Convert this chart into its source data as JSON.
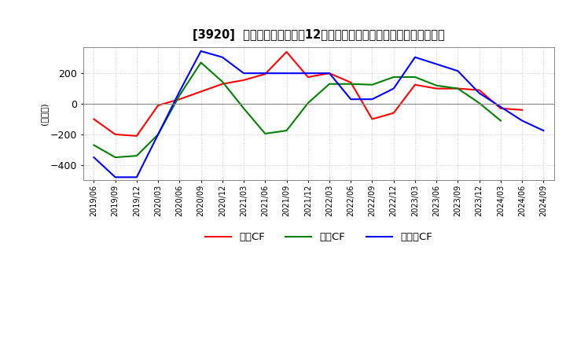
{
  "title": "[3920]  キャッシュフローの12か月移動合計の対前年同期増減額の推移",
  "ylabel": "(百万円)",
  "ylim": [
    -500,
    370
  ],
  "yticks": [
    200,
    0,
    -200,
    -400
  ],
  "x_labels": [
    "2019/06",
    "2019/09",
    "2019/12",
    "2020/03",
    "2020/06",
    "2020/09",
    "2020/12",
    "2021/03",
    "2021/06",
    "2021/09",
    "2021/12",
    "2022/03",
    "2022/06",
    "2022/09",
    "2022/12",
    "2023/03",
    "2023/06",
    "2023/09",
    "2023/12",
    "2024/03",
    "2024/06",
    "2024/09"
  ],
  "series": {
    "営業CF": {
      "color": "#ff0000",
      "values": [
        -100,
        -200,
        -210,
        -10,
        30,
        80,
        130,
        155,
        195,
        340,
        175,
        200,
        140,
        -100,
        -60,
        125,
        100,
        100,
        90,
        -30,
        -40,
        null
      ]
    },
    "投資CF": {
      "color": "#008000",
      "values": [
        -270,
        -350,
        -340,
        -200,
        55,
        270,
        145,
        -30,
        -195,
        -175,
        5,
        130,
        130,
        125,
        175,
        175,
        120,
        100,
        5,
        -110,
        null,
        null
      ]
    },
    "フリーCF": {
      "color": "#0000ff",
      "values": [
        -350,
        -480,
        -480,
        -200,
        80,
        345,
        305,
        200,
        200,
        200,
        200,
        200,
        30,
        30,
        100,
        305,
        260,
        215,
        70,
        -20,
        -110,
        -175
      ]
    }
  },
  "legend_labels": [
    "営業CF",
    "投資CF",
    "フリーCF"
  ],
  "background_color": "#ffffff",
  "grid_color": "#c8c8c8"
}
